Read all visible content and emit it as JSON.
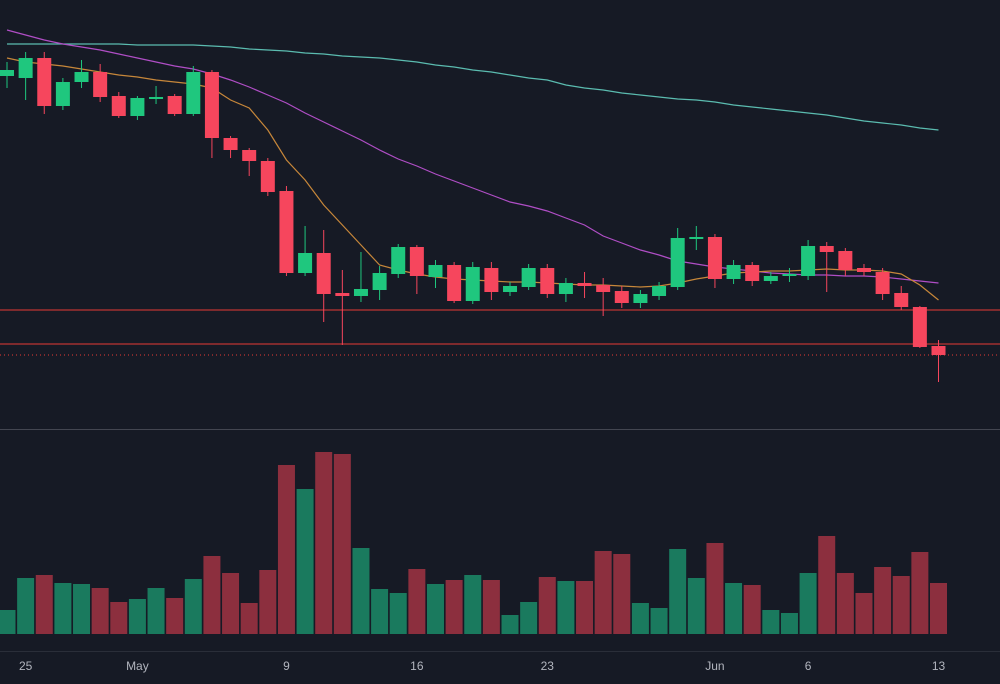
{
  "chart_data": {
    "type": "candlestick",
    "categories": [
      null,
      "25",
      null,
      null,
      null,
      null,
      null,
      "May",
      null,
      null,
      null,
      null,
      null,
      null,
      null,
      "9",
      null,
      null,
      null,
      null,
      null,
      null,
      "16",
      null,
      null,
      null,
      null,
      null,
      null,
      "23",
      null,
      null,
      null,
      null,
      null,
      null,
      null,
      null,
      "Jun",
      null,
      null,
      null,
      null,
      "6",
      null,
      null,
      null,
      null,
      null,
      null,
      "13"
    ],
    "open": [
      354,
      352,
      372,
      324,
      348,
      358,
      334,
      314,
      331,
      334,
      316,
      358,
      292,
      280,
      269,
      239,
      157,
      177,
      137,
      134,
      140,
      156,
      183,
      153,
      165,
      129,
      162,
      138,
      143,
      162,
      136,
      147,
      145,
      139,
      127,
      134,
      143,
      191,
      193,
      151,
      165,
      149,
      154,
      154,
      184,
      179,
      162,
      158,
      137,
      123,
      84
    ],
    "high": [
      368,
      378,
      378,
      352,
      370,
      366,
      338,
      334,
      344,
      336,
      364,
      360,
      294,
      282,
      272,
      244,
      204,
      200,
      160,
      178,
      164,
      186,
      185,
      170,
      168,
      168,
      168,
      148,
      166,
      166,
      152,
      158,
      152,
      144,
      140,
      148,
      202,
      204,
      196,
      170,
      168,
      158,
      162,
      190,
      188,
      182,
      166,
      162,
      144,
      124,
      90
    ],
    "low": [
      342,
      330,
      316,
      320,
      342,
      328,
      312,
      310,
      326,
      314,
      314,
      272,
      272,
      254,
      234,
      154,
      154,
      108,
      85,
      128,
      130,
      152,
      136,
      142,
      127,
      126,
      130,
      134,
      140,
      132,
      128,
      132,
      114,
      122,
      122,
      130,
      140,
      180,
      142,
      146,
      144,
      146,
      148,
      150,
      138,
      154,
      154,
      130,
      120,
      82,
      48
    ],
    "close": [
      360,
      372,
      324,
      348,
      358,
      333,
      314,
      332,
      333,
      316,
      358,
      292,
      280,
      269,
      238,
      157,
      177,
      136,
      134,
      141,
      157,
      183,
      154,
      165,
      129,
      163,
      138,
      144,
      162,
      136,
      147,
      144,
      138,
      127,
      136,
      144,
      192,
      193,
      151,
      165,
      149,
      154,
      156,
      184,
      178,
      160,
      158,
      136,
      123,
      83,
      75
    ],
    "ylim": [
      0,
      430
    ],
    "up_color": "#1fc77e",
    "down_color": "#f6465d",
    "moving_averages": [
      {
        "color": "#5bbcb0",
        "values": [
          386,
          386,
          386,
          386,
          386,
          386,
          386,
          385,
          385,
          385,
          385,
          384,
          383,
          381,
          380,
          379,
          377,
          376,
          374,
          373,
          372,
          370,
          368,
          365,
          363,
          360,
          358,
          355,
          352,
          350,
          345,
          342,
          340,
          337,
          335,
          333,
          331,
          330,
          328,
          325,
          323,
          321,
          319,
          317,
          315,
          312,
          309,
          307,
          305,
          302,
          300
        ]
      },
      {
        "color": "#b04ec6",
        "values": [
          400,
          395,
          390,
          386,
          383,
          380,
          376,
          372,
          368,
          364,
          361,
          356,
          350,
          343,
          335,
          327,
          317,
          308,
          299,
          290,
          280,
          271,
          264,
          256,
          249,
          242,
          235,
          228,
          224,
          219,
          212,
          205,
          194,
          187,
          180,
          175,
          169,
          166,
          163,
          161,
          159,
          157,
          156,
          155,
          155,
          154,
          154,
          153,
          151,
          149,
          147
        ]
      },
      {
        "color": "#c7873a",
        "values": [
          372,
          368,
          366,
          364,
          361,
          358,
          355,
          353,
          350,
          348,
          346,
          342,
          330,
          322,
          300,
          270,
          250,
          225,
          205,
          185,
          165,
          160,
          156,
          153,
          151,
          150,
          149,
          148,
          148,
          147,
          146,
          145,
          145,
          144,
          143,
          144,
          147,
          151,
          154,
          157,
          158,
          159,
          159,
          160,
          161,
          160,
          160,
          159,
          156,
          145,
          130
        ]
      }
    ],
    "levels": [
      120,
      86
    ],
    "level_color": "#e53935",
    "volume": {
      "values": [
        24,
        56,
        59,
        51,
        50,
        46,
        32,
        35,
        46,
        36,
        55,
        78,
        61,
        31,
        64,
        169,
        145,
        182,
        180,
        86,
        45,
        41,
        65,
        50,
        54,
        59,
        54,
        19,
        32,
        57,
        53,
        53,
        83,
        80,
        31,
        26,
        85,
        56,
        91,
        51,
        49,
        24,
        21,
        61,
        98,
        61,
        41,
        67,
        58,
        82,
        51
      ],
      "ylim": [
        0,
        204
      ],
      "up_color": "#1a7a5e",
      "down_color": "#8c2f3e"
    }
  }
}
